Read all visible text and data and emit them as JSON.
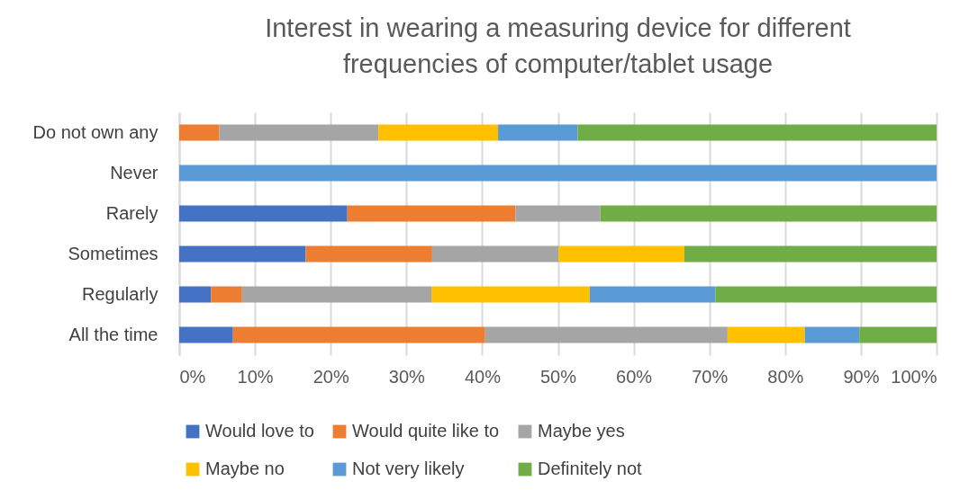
{
  "chart_data": {
    "type": "bar",
    "orientation": "horizontal",
    "stacked": true,
    "title": "Interest in wearing a measuring device for different frequencies of computer/tablet usage",
    "categories": [
      "Do not own any",
      "Never",
      "Rarely",
      "Sometimes",
      "Regularly",
      "All the time"
    ],
    "series": [
      {
        "name": "Would love to",
        "color": "#4472c4",
        "values": [
          0,
          0,
          22.2,
          16.7,
          4.2,
          7.1
        ]
      },
      {
        "name": "Would quite like to",
        "color": "#ed7d31",
        "values": [
          5.3,
          0,
          22.2,
          16.7,
          4.1,
          33.3
        ]
      },
      {
        "name": "Maybe yes",
        "color": "#a5a5a5",
        "values": [
          21.0,
          0,
          11.2,
          16.7,
          25.0,
          32.0
        ]
      },
      {
        "name": "Maybe no",
        "color": "#ffc000",
        "values": [
          15.8,
          0,
          0,
          16.6,
          20.9,
          10.2
        ]
      },
      {
        "name": "Not very likely",
        "color": "#5b9bd5",
        "values": [
          10.5,
          100,
          0,
          0,
          16.6,
          7.2
        ]
      },
      {
        "name": "Definitely not",
        "color": "#70ad47",
        "values": [
          47.4,
          0,
          44.4,
          33.3,
          29.2,
          10.2
        ]
      }
    ],
    "xlim": [
      0,
      100
    ],
    "xticks": [
      {
        "value": 0,
        "label": "0%"
      },
      {
        "value": 10,
        "label": "10%"
      },
      {
        "value": 20,
        "label": "20%"
      },
      {
        "value": 30,
        "label": "30%"
      },
      {
        "value": 40,
        "label": "40%"
      },
      {
        "value": 50,
        "label": "50%"
      },
      {
        "value": 60,
        "label": "60%"
      },
      {
        "value": 70,
        "label": "70%"
      },
      {
        "value": 80,
        "label": "80%"
      },
      {
        "value": 90,
        "label": "90%"
      },
      {
        "value": 100,
        "label": "100%"
      }
    ],
    "grid": "x",
    "legend": "bottom"
  }
}
